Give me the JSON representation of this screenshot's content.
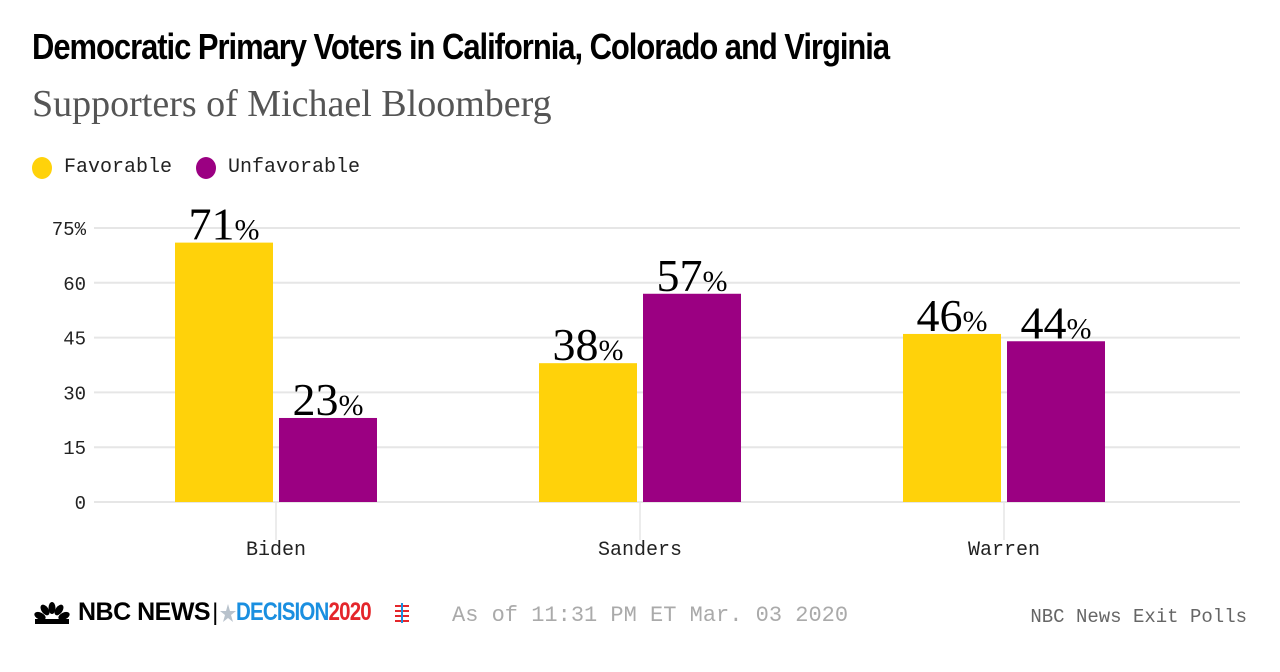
{
  "header": {
    "title": "Democratic Primary Voters in California, Colorado and Virginia",
    "subtitle": "Supporters of Michael Bloomberg"
  },
  "legend": [
    {
      "label": "Favorable",
      "color": "#FFD20A"
    },
    {
      "label": "Unfavorable",
      "color": "#9B0082"
    }
  ],
  "chart_data": {
    "type": "bar",
    "title": "Democratic Primary Voters in California, Colorado and Virginia",
    "subtitle": "Supporters of Michael Bloomberg",
    "categories": [
      "Biden",
      "Sanders",
      "Warren"
    ],
    "series": [
      {
        "name": "Favorable",
        "color": "#FFD20A",
        "values": [
          71,
          38,
          46
        ]
      },
      {
        "name": "Unfavorable",
        "color": "#9B0082",
        "values": [
          23,
          57,
          44
        ]
      }
    ],
    "value_suffix": "%",
    "xlabel": "",
    "ylabel": "",
    "ylim": [
      0,
      75
    ],
    "yticks": [
      0,
      15,
      30,
      45,
      60,
      75
    ],
    "ytick_labels": [
      "0",
      "15",
      "30",
      "45",
      "60",
      "75%"
    ],
    "grid": true,
    "legend_position": "top-left"
  },
  "footer": {
    "brand": "NBC NEWS",
    "separator": "|",
    "decision_word": "DECISION",
    "decision_year": "2020",
    "timestamp": "As of 11:31 PM ET Mar. 03 2020",
    "source": "NBC News Exit Polls"
  }
}
